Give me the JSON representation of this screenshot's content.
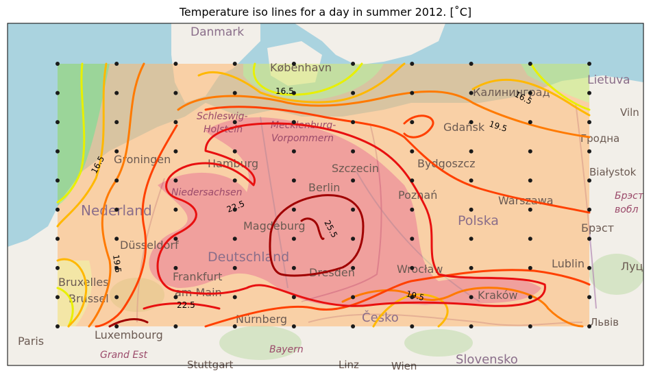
{
  "title": "Temperature iso lines for a day in summer 2012. [˚C]",
  "colors": {
    "sea": "#aad3df",
    "land": "#f2efe9",
    "grid_point": "#1a1a1a",
    "frame": "#000000",
    "iso_16_5": "#e8f000",
    "iso_18": "#ffb800",
    "iso_19_5": "#ff7a00",
    "iso_21": "#ff4000",
    "iso_22_5": "#e81010",
    "iso_25_5": "#a00000"
  },
  "places": [
    {
      "label": "Danmark",
      "kind": "country"
    },
    {
      "label": "København",
      "kind": "city"
    },
    {
      "label": "Lietuva",
      "kind": "country"
    },
    {
      "label": "Калининград",
      "kind": "city"
    },
    {
      "label": "Vilnius",
      "kind": "city",
      "shown": "Viln"
    },
    {
      "label": "Schleswig-",
      "kind": "region"
    },
    {
      "label": "Holstein",
      "kind": "region"
    },
    {
      "label": "Mecklenburg-",
      "kind": "region"
    },
    {
      "label": "Vorpommern",
      "kind": "region"
    },
    {
      "label": "Gdańsk",
      "kind": "city"
    },
    {
      "label": "Гродна",
      "kind": "city"
    },
    {
      "label": "Groningen",
      "kind": "city"
    },
    {
      "label": "Hamburg",
      "kind": "city"
    },
    {
      "label": "Szczecin",
      "kind": "city"
    },
    {
      "label": "Bydgoszcz",
      "kind": "city"
    },
    {
      "label": "Białystok",
      "kind": "city"
    },
    {
      "label": "Niedersachsen",
      "kind": "region"
    },
    {
      "label": "Berlin",
      "kind": "city"
    },
    {
      "label": "Poznań",
      "kind": "city"
    },
    {
      "label": "Warszawa",
      "kind": "city"
    },
    {
      "label": "Брэст",
      "kind": "region"
    },
    {
      "label": "вобл",
      "kind": "region"
    },
    {
      "label": "Nederland",
      "kind": "country"
    },
    {
      "label": "Magdeburg",
      "kind": "city"
    },
    {
      "label": "Polska",
      "kind": "country"
    },
    {
      "label": "Брэст",
      "kind": "city"
    },
    {
      "label": "Düsseldorf",
      "kind": "city"
    },
    {
      "label": "Deutschland",
      "kind": "country"
    },
    {
      "label": "Lublin",
      "kind": "city"
    },
    {
      "label": "Wrocław",
      "kind": "city"
    },
    {
      "label": "Луц",
      "kind": "city"
    },
    {
      "label": "Bruxelles",
      "kind": "city"
    },
    {
      "label": "Brussel",
      "kind": "city"
    },
    {
      "label": "Frankfurt",
      "kind": "city"
    },
    {
      "label": "am Main",
      "kind": "city"
    },
    {
      "label": "Dresden",
      "kind": "city"
    },
    {
      "label": "Kraków",
      "kind": "city"
    },
    {
      "label": "Nürnberg",
      "kind": "city"
    },
    {
      "label": "Česko",
      "kind": "country"
    },
    {
      "label": "Львів",
      "kind": "city"
    },
    {
      "label": "Paris",
      "kind": "city"
    },
    {
      "label": "Luxembourg",
      "kind": "city"
    },
    {
      "label": "Grand Est",
      "kind": "region"
    },
    {
      "label": "Bayern",
      "kind": "region"
    },
    {
      "label": "Stuttgart",
      "kind": "city"
    },
    {
      "label": "Linz",
      "kind": "city"
    },
    {
      "label": "Wien",
      "kind": "city"
    },
    {
      "label": "Slovensko",
      "kind": "country"
    }
  ],
  "isolines": [
    {
      "value": 16.5,
      "label": "16.5",
      "color": "#e8f000"
    },
    {
      "value": 18.0,
      "label": "",
      "color": "#ffb800"
    },
    {
      "value": 19.5,
      "label": "19.5",
      "color": "#ff7a00"
    },
    {
      "value": 21.0,
      "label": "",
      "color": "#ff4000"
    },
    {
      "value": 22.5,
      "label": "22.5",
      "color": "#e81010"
    },
    {
      "value": 25.5,
      "label": "25.5",
      "color": "#a00000"
    }
  ],
  "contour_labels": [
    {
      "text": "16.5"
    },
    {
      "text": "16.5"
    },
    {
      "text": "16.5"
    },
    {
      "text": "19.5"
    },
    {
      "text": "19.5"
    },
    {
      "text": "19.5"
    },
    {
      "text": "22.5"
    },
    {
      "text": "22.5"
    },
    {
      "text": "25.5"
    }
  ],
  "grid": {
    "cols": 10,
    "rows": 10
  }
}
